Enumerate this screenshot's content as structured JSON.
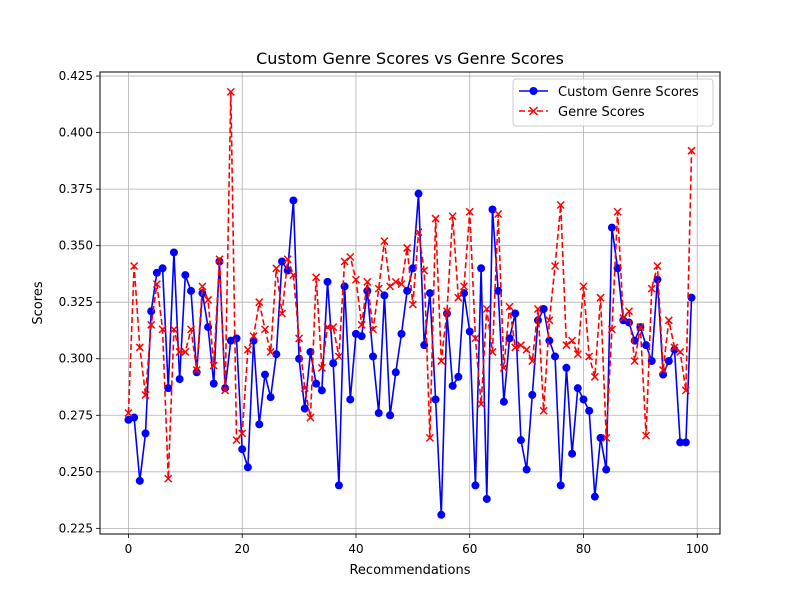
{
  "chart_data": {
    "type": "line",
    "title": "Custom Genre Scores vs Genre Scores",
    "xlabel": "Recommendations",
    "ylabel": "Scores",
    "xlim": [
      -5,
      104
    ],
    "ylim": [
      0.2225,
      0.4268
    ],
    "xticks": [
      0,
      20,
      40,
      60,
      80,
      100
    ],
    "xtick_labels": [
      "0",
      "20",
      "40",
      "60",
      "80",
      "100"
    ],
    "yticks": [
      0.225,
      0.25,
      0.275,
      0.3,
      0.325,
      0.35,
      0.375,
      0.4,
      0.425
    ],
    "ytick_labels": [
      "0.225",
      "0.250",
      "0.275",
      "0.300",
      "0.325",
      "0.350",
      "0.375",
      "0.400",
      "0.425"
    ],
    "grid": true,
    "legend_position": "top-right",
    "x": [
      0,
      1,
      2,
      3,
      4,
      5,
      6,
      7,
      8,
      9,
      10,
      11,
      12,
      13,
      14,
      15,
      16,
      17,
      18,
      19,
      20,
      21,
      22,
      23,
      24,
      25,
      26,
      27,
      28,
      29,
      30,
      31,
      32,
      33,
      34,
      35,
      36,
      37,
      38,
      39,
      40,
      41,
      42,
      43,
      44,
      45,
      46,
      47,
      48,
      49,
      50,
      51,
      52,
      53,
      54,
      55,
      56,
      57,
      58,
      59,
      60,
      61,
      62,
      63,
      64,
      65,
      66,
      67,
      68,
      69,
      70,
      71,
      72,
      73,
      74,
      75,
      76,
      77,
      78,
      79,
      80,
      81,
      82,
      83,
      84,
      85,
      86,
      87,
      88,
      89,
      90,
      91,
      92,
      93,
      94,
      95,
      96,
      97,
      98,
      99
    ],
    "series": [
      {
        "name": "Custom Genre Scores",
        "color": "#0000ff",
        "line_style": "solid",
        "marker": "circle",
        "values": [
          0.273,
          0.274,
          0.246,
          0.267,
          0.321,
          0.338,
          0.34,
          0.287,
          0.347,
          0.291,
          0.337,
          0.33,
          0.294,
          0.329,
          0.314,
          0.289,
          0.343,
          0.287,
          0.308,
          0.309,
          0.26,
          0.252,
          0.308,
          0.271,
          0.293,
          0.283,
          0.302,
          0.343,
          0.339,
          0.37,
          0.3,
          0.278,
          0.303,
          0.289,
          0.286,
          0.334,
          0.298,
          0.244,
          0.332,
          0.282,
          0.311,
          0.31,
          0.33,
          0.301,
          0.276,
          0.328,
          0.275,
          0.294,
          0.311,
          0.33,
          0.34,
          0.373,
          0.306,
          0.329,
          0.282,
          0.231,
          0.32,
          0.288,
          0.292,
          0.329,
          0.312,
          0.244,
          0.34,
          0.238,
          0.366,
          0.33,
          0.281,
          0.309,
          0.32,
          0.264,
          0.251,
          0.284,
          0.317,
          0.322,
          0.308,
          0.301,
          0.244,
          0.296,
          0.258,
          0.287,
          0.282,
          0.277,
          0.239,
          0.265,
          0.251,
          0.358,
          0.34,
          0.317,
          0.316,
          0.308,
          0.314,
          0.306,
          0.299,
          0.335,
          0.293,
          0.299,
          0.304,
          0.263,
          0.263,
          0.327
        ]
      },
      {
        "name": "Genre Scores",
        "color": "#ff0000",
        "line_style": "dashed",
        "marker": "x",
        "values": [
          0.276,
          0.341,
          0.305,
          0.284,
          0.315,
          0.333,
          0.313,
          0.247,
          0.313,
          0.303,
          0.303,
          0.313,
          0.295,
          0.332,
          0.326,
          0.297,
          0.344,
          0.286,
          0.418,
          0.264,
          0.267,
          0.304,
          0.31,
          0.325,
          0.313,
          0.303,
          0.34,
          0.32,
          0.344,
          0.337,
          0.309,
          0.287,
          0.274,
          0.336,
          0.296,
          0.314,
          0.314,
          0.301,
          0.343,
          0.345,
          0.335,
          0.315,
          0.334,
          0.313,
          0.331,
          0.352,
          0.332,
          0.334,
          0.333,
          0.349,
          0.324,
          0.356,
          0.339,
          0.265,
          0.362,
          0.299,
          0.321,
          0.363,
          0.327,
          0.332,
          0.365,
          0.309,
          0.28,
          0.322,
          0.303,
          0.364,
          0.296,
          0.323,
          0.305,
          0.306,
          0.304,
          0.299,
          0.322,
          0.277,
          0.317,
          0.341,
          0.368,
          0.306,
          0.308,
          0.302,
          0.332,
          0.301,
          0.292,
          0.327,
          0.265,
          0.313,
          0.365,
          0.318,
          0.321,
          0.299,
          0.314,
          0.266,
          0.331,
          0.341,
          0.295,
          0.317,
          0.305,
          0.303,
          0.286,
          0.392
        ]
      }
    ]
  }
}
